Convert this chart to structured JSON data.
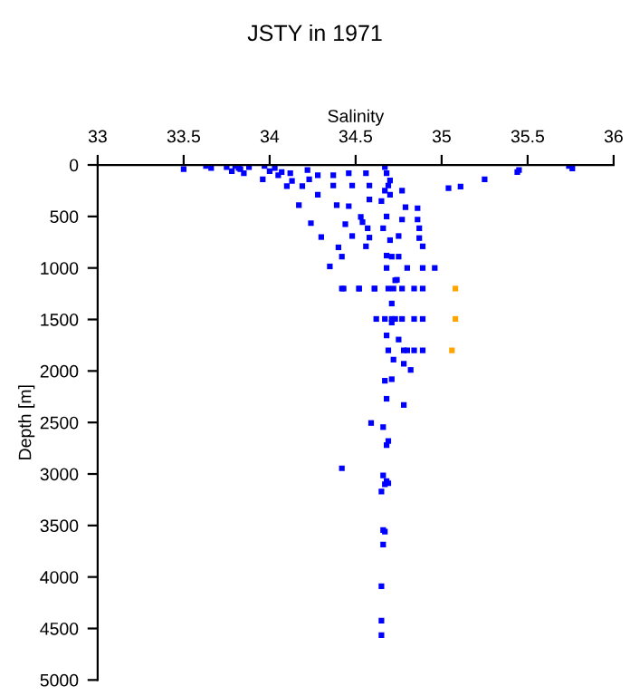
{
  "chart_data": {
    "type": "scatter",
    "title": "JSTY in 1971",
    "xlabel": "Salinity",
    "ylabel": "Depth [m]",
    "xlim": [
      33,
      36
    ],
    "xticks": [
      33,
      33.5,
      34,
      34.5,
      35,
      35.5,
      36
    ],
    "ylim": [
      5000,
      0
    ],
    "yticks": [
      0,
      500,
      1000,
      1500,
      2000,
      2500,
      3000,
      3500,
      4000,
      4500,
      5000
    ],
    "grid": false,
    "legend": false,
    "marker": "square",
    "series": [
      {
        "color": "#0000ff",
        "x": [
          33.5,
          33.63,
          33.66,
          33.75,
          33.78,
          33.8,
          33.83,
          33.85,
          33.82,
          33.88,
          33.97,
          34.0,
          34.03,
          34.05,
          33.96,
          34.1,
          34.17,
          34.24,
          34.3,
          34.4,
          34.42,
          34.35,
          34.42,
          34.52,
          34.61,
          34.12,
          34.07,
          34.13,
          34.22,
          34.23,
          34.28,
          34.28,
          34.19,
          34.37,
          34.37,
          34.39,
          34.46,
          34.48,
          34.46,
          34.56,
          34.58,
          34.58,
          34.54,
          34.44,
          34.53,
          34.57,
          34.58,
          34.48,
          34.56,
          34.67,
          34.68,
          34.7,
          34.69,
          34.7,
          34.67,
          34.65,
          34.68,
          34.66,
          34.7,
          34.68,
          34.71,
          34.68,
          34.77,
          34.79,
          34.77,
          34.75,
          34.75,
          34.8,
          34.73,
          34.86,
          34.86,
          34.87,
          34.87,
          34.89,
          34.89,
          34.96,
          35.04,
          35.11,
          35.25,
          35.44,
          35.45,
          35.74,
          35.76,
          34.74,
          34.43,
          34.52,
          34.61,
          34.69,
          34.72,
          34.77,
          34.84,
          34.89,
          34.71,
          34.62,
          34.67,
          34.71,
          34.73,
          34.77,
          34.84,
          34.89,
          34.71,
          34.68,
          34.75,
          34.69,
          34.78,
          34.8,
          34.84,
          34.89,
          34.72,
          34.78,
          34.82,
          34.67,
          34.71,
          34.68,
          34.78,
          34.59,
          34.66,
          34.69,
          34.68,
          34.42,
          34.66,
          34.68,
          34.67,
          34.69,
          34.65,
          34.66,
          34.67,
          34.66,
          34.65,
          34.65,
          34.65
        ],
        "values": [
          40,
          10,
          30,
          20,
          60,
          10,
          40,
          80,
          30,
          20,
          10,
          60,
          30,
          100,
          140,
          205,
          390,
          565,
          700,
          800,
          890,
          985,
          1200,
          1200,
          1200,
          80,
          70,
          155,
          50,
          140,
          100,
          290,
          205,
          100,
          200,
          390,
          80,
          200,
          400,
          80,
          200,
          335,
          555,
          575,
          505,
          615,
          705,
          690,
          790,
          20,
          80,
          150,
          200,
          290,
          250,
          350,
          500,
          615,
          730,
          880,
          890,
          1000,
          250,
          410,
          530,
          690,
          890,
          1000,
          1120,
          420,
          530,
          615,
          710,
          790,
          1000,
          1000,
          225,
          210,
          140,
          70,
          50,
          10,
          35,
          1115,
          1200,
          1200,
          1200,
          1200,
          1200,
          1200,
          1200,
          1200,
          1345,
          1495,
          1495,
          1495,
          1495,
          1495,
          1495,
          1495,
          1530,
          1655,
          1695,
          1800,
          1800,
          1800,
          1800,
          1800,
          1890,
          1930,
          1990,
          2095,
          2080,
          2270,
          2330,
          2505,
          2545,
          2680,
          2720,
          2945,
          3015,
          3070,
          3100,
          3090,
          3170,
          3545,
          3560,
          3685,
          4090,
          4425,
          4565
        ]
      },
      {
        "color": "#ffa500",
        "x": [
          35.08,
          35.08,
          35.06
        ],
        "values": [
          1200,
          1495,
          1800
        ]
      }
    ]
  }
}
